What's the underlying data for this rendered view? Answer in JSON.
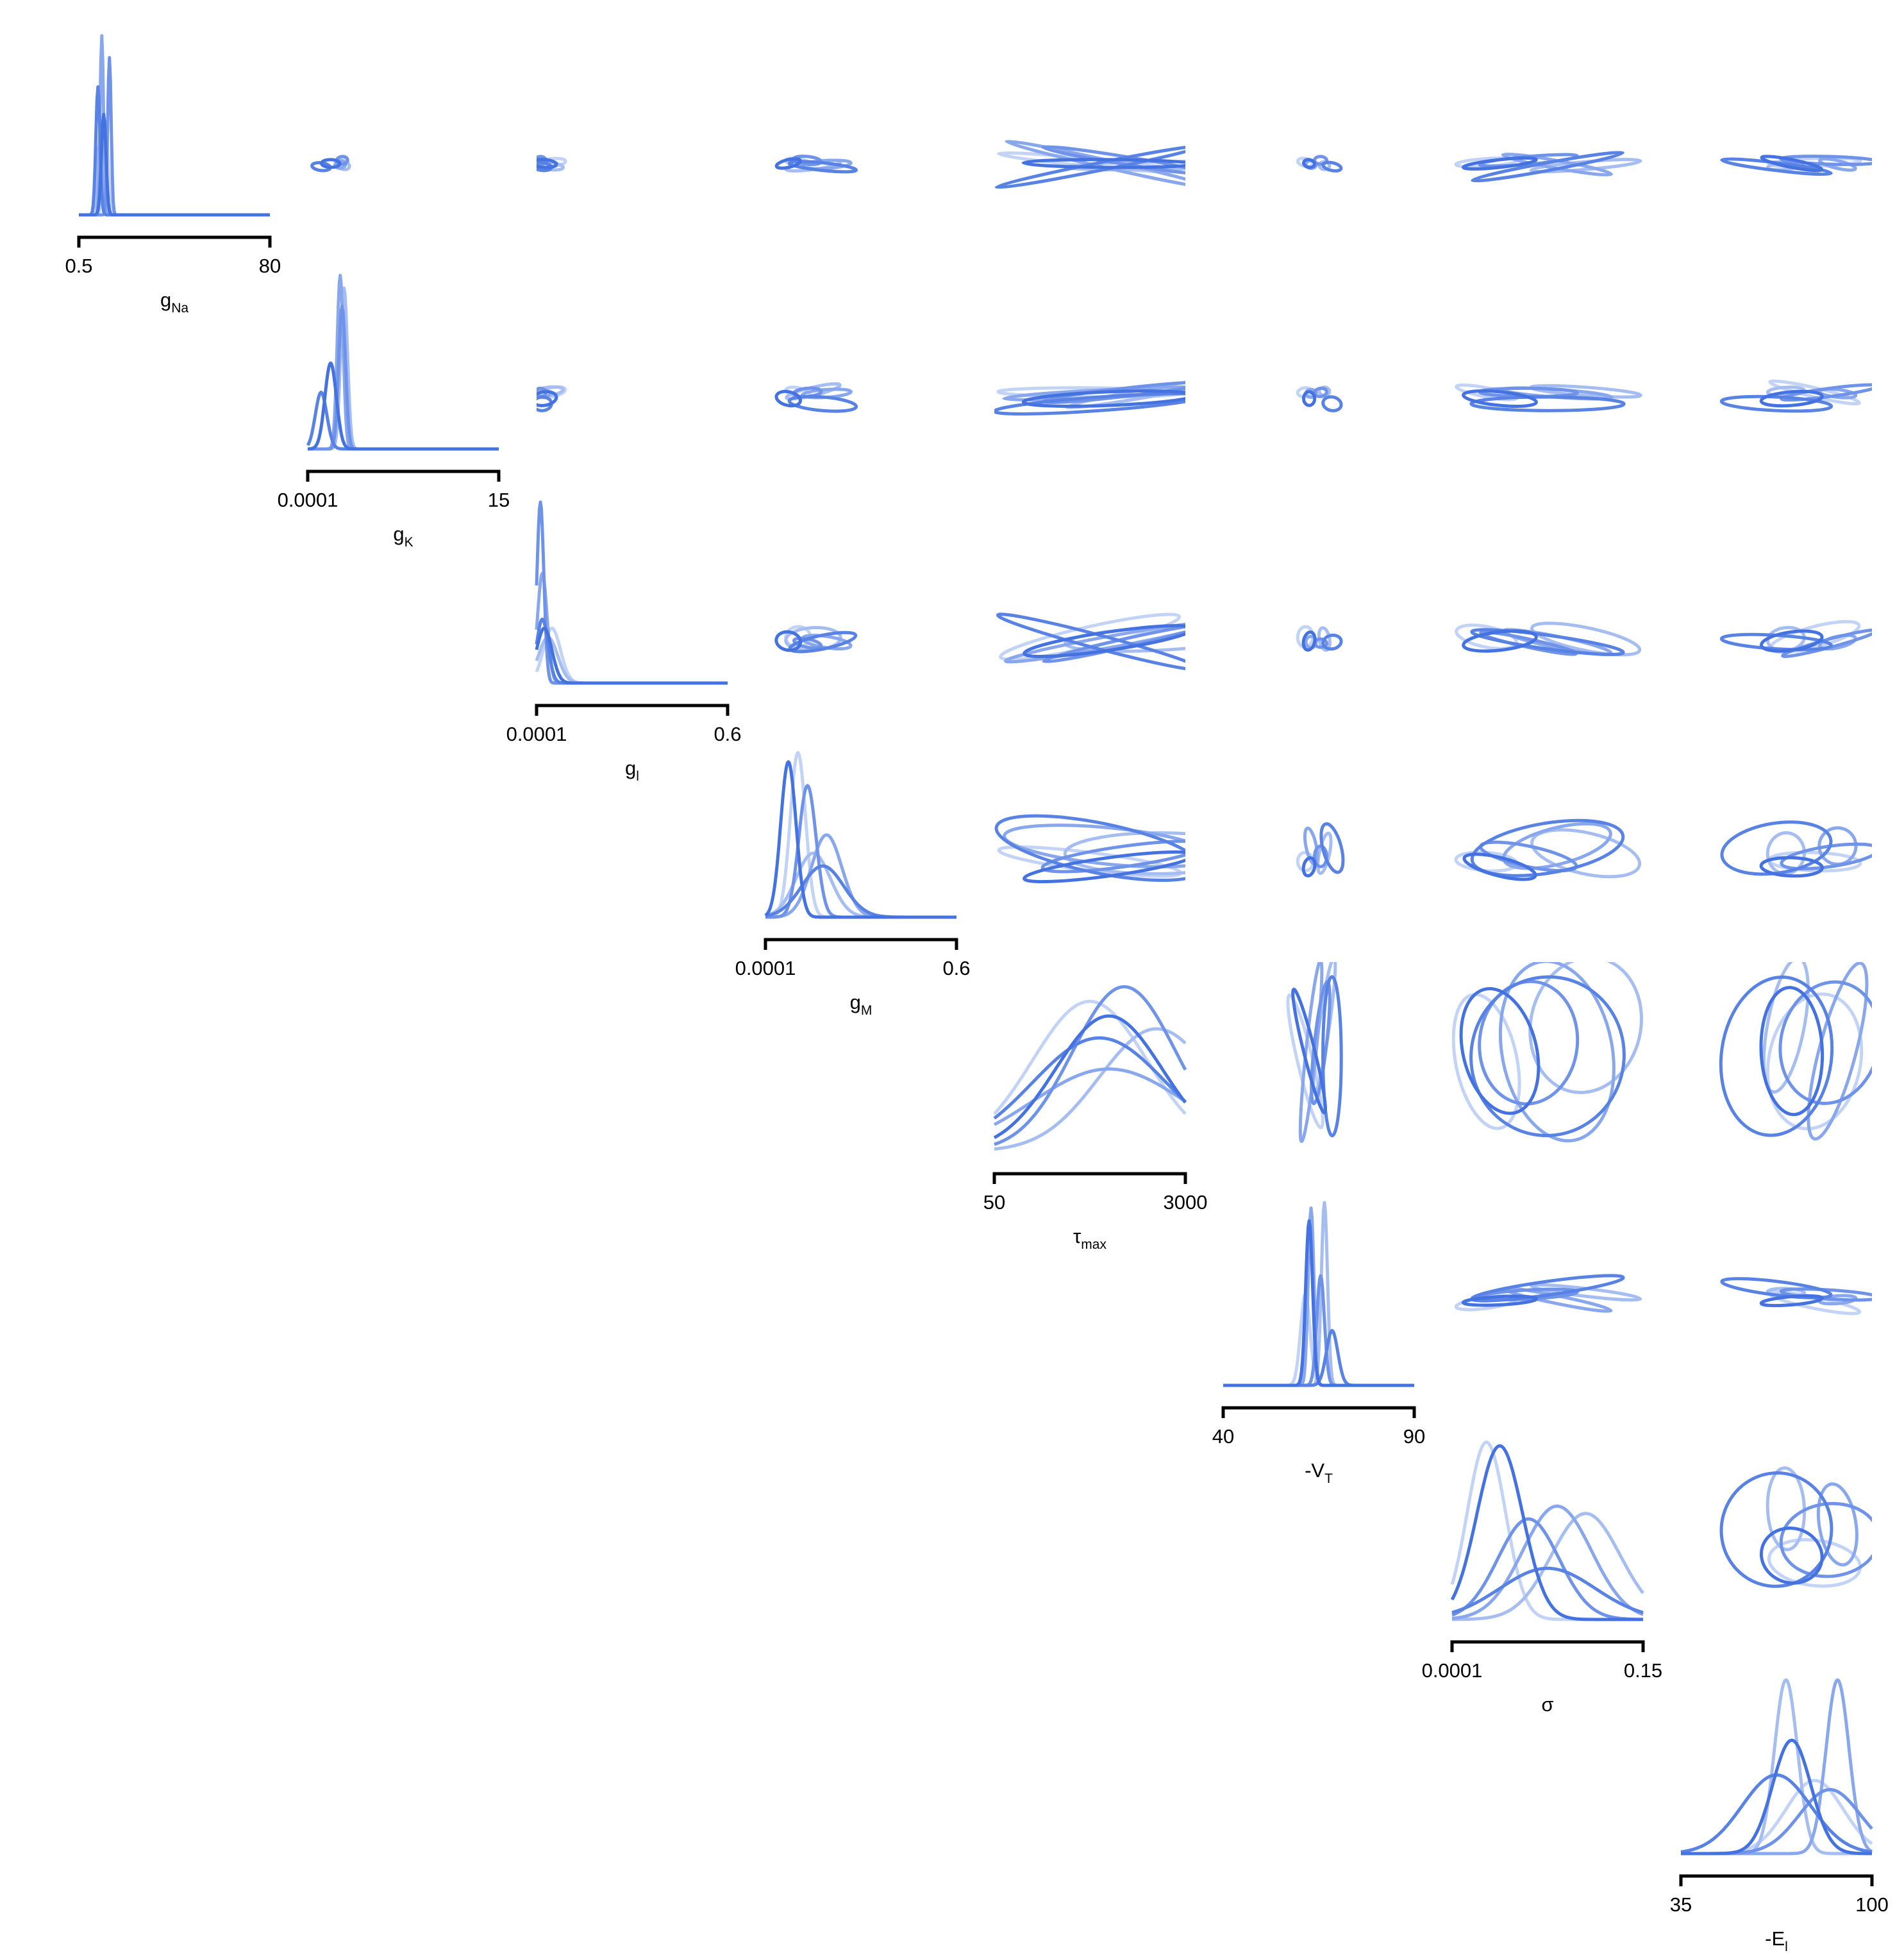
{
  "chart_data": {
    "type": "pairplot",
    "series_colors": [
      "#4472E0",
      "#5882E4",
      "#6F93E8",
      "#89A7EC",
      "#A5BDF0",
      "#C2D3F5"
    ],
    "parameters": [
      {
        "base": "g",
        "sub": "Na",
        "prefix": "",
        "range": [
          0.5,
          80
        ],
        "tick_labels": [
          "0.5",
          "80"
        ]
      },
      {
        "base": "g",
        "sub": "K",
        "prefix": "",
        "range": [
          0.0001,
          15
        ],
        "tick_labels": [
          "0.0001",
          "15"
        ]
      },
      {
        "base": "g",
        "sub": "l",
        "prefix": "",
        "range": [
          0.0001,
          0.6
        ],
        "tick_labels": [
          "0.0001",
          "0.6"
        ]
      },
      {
        "base": "g",
        "sub": "M",
        "prefix": "",
        "range": [
          0.0001,
          0.6
        ],
        "tick_labels": [
          "0.0001",
          "0.6"
        ]
      },
      {
        "base": "τ",
        "sub": "max",
        "prefix": "",
        "range": [
          50,
          3000
        ],
        "tick_labels": [
          "50",
          "3000"
        ]
      },
      {
        "base": "V",
        "sub": "T",
        "prefix": "-",
        "range": [
          40,
          90
        ],
        "tick_labels": [
          "40",
          "90"
        ]
      },
      {
        "base": "σ",
        "sub": "",
        "prefix": "",
        "range": [
          0.0001,
          0.15
        ],
        "tick_labels": [
          "0.0001",
          "0.15"
        ]
      },
      {
        "base": "E",
        "sub": "l",
        "prefix": "-",
        "range": [
          35,
          100
        ],
        "tick_labels": [
          "35",
          "100"
        ]
      }
    ],
    "marginals": [
      {
        "param": 0,
        "series": [
          {
            "peak": 0.13,
            "width": 0.012,
            "height": 0.55
          },
          {
            "peak": 0.1,
            "width": 0.011,
            "height": 0.7
          },
          {
            "peak": 0.16,
            "width": 0.009,
            "height": 0.86
          },
          {
            "peak": 0.12,
            "width": 0.009,
            "height": 0.98
          },
          {
            "peak": 0.11,
            "width": 0.014,
            "height": 0.4
          },
          {
            "peak": 0.14,
            "width": 0.013,
            "height": 0.5
          }
        ]
      },
      {
        "param": 1,
        "series": [
          {
            "peak": 0.12,
            "width": 0.03,
            "height": 0.47
          },
          {
            "peak": 0.07,
            "width": 0.03,
            "height": 0.31
          },
          {
            "peak": 0.18,
            "width": 0.018,
            "height": 0.78
          },
          {
            "peak": 0.17,
            "width": 0.016,
            "height": 0.95
          },
          {
            "peak": 0.19,
            "width": 0.018,
            "height": 0.88
          },
          {
            "peak": 0.18,
            "width": 0.02,
            "height": 0.7
          }
        ]
      },
      {
        "param": 2,
        "series": [
          {
            "peak": 0.04,
            "width": 0.04,
            "height": 0.3
          },
          {
            "peak": 0.03,
            "width": 0.03,
            "height": 0.35
          },
          {
            "peak": 0.02,
            "width": 0.018,
            "height": 0.99
          },
          {
            "peak": 0.03,
            "width": 0.025,
            "height": 0.6
          },
          {
            "peak": 0.06,
            "width": 0.05,
            "height": 0.25
          },
          {
            "peak": 0.08,
            "width": 0.045,
            "height": 0.3
          }
        ]
      },
      {
        "param": 3,
        "series": [
          {
            "peak": 0.12,
            "width": 0.04,
            "height": 0.85
          },
          {
            "peak": 0.3,
            "width": 0.11,
            "height": 0.28
          },
          {
            "peak": 0.22,
            "width": 0.045,
            "height": 0.72
          },
          {
            "peak": 0.32,
            "width": 0.08,
            "height": 0.45
          },
          {
            "peak": 0.25,
            "width": 0.09,
            "height": 0.35
          },
          {
            "peak": 0.17,
            "width": 0.04,
            "height": 0.9
          }
        ]
      },
      {
        "param": 4,
        "series": [
          {
            "peak": 0.6,
            "width": 0.28,
            "height": 0.74
          },
          {
            "peak": 0.55,
            "width": 0.35,
            "height": 0.62
          },
          {
            "peak": 0.68,
            "width": 0.27,
            "height": 0.9
          },
          {
            "peak": 0.6,
            "width": 0.4,
            "height": 0.45
          },
          {
            "peak": 0.85,
            "width": 0.3,
            "height": 0.67
          },
          {
            "peak": 0.5,
            "width": 0.3,
            "height": 0.82
          }
        ]
      },
      {
        "param": 5,
        "series": [
          {
            "peak": 0.45,
            "width": 0.018,
            "height": 0.9
          },
          {
            "peak": 0.57,
            "width": 0.03,
            "height": 0.3
          },
          {
            "peak": 0.51,
            "width": 0.02,
            "height": 0.6
          },
          {
            "peak": 0.46,
            "width": 0.015,
            "height": 0.97
          },
          {
            "peak": 0.53,
            "width": 0.016,
            "height": 1.0
          },
          {
            "peak": 0.43,
            "width": 0.025,
            "height": 0.5
          }
        ]
      },
      {
        "param": 6,
        "series": [
          {
            "peak": 0.25,
            "width": 0.12,
            "height": 0.95
          },
          {
            "peak": 0.5,
            "width": 0.25,
            "height": 0.28
          },
          {
            "peak": 0.4,
            "width": 0.16,
            "height": 0.55
          },
          {
            "peak": 0.55,
            "width": 0.18,
            "height": 0.62
          },
          {
            "peak": 0.7,
            "width": 0.18,
            "height": 0.58
          },
          {
            "peak": 0.18,
            "width": 0.1,
            "height": 0.97
          }
        ]
      },
      {
        "param": 7,
        "series": [
          {
            "peak": 0.58,
            "width": 0.1,
            "height": 0.62
          },
          {
            "peak": 0.5,
            "width": 0.18,
            "height": 0.43
          },
          {
            "peak": 0.78,
            "width": 0.16,
            "height": 0.35
          },
          {
            "peak": 0.82,
            "width": 0.06,
            "height": 0.95
          },
          {
            "peak": 0.55,
            "width": 0.06,
            "height": 0.95
          },
          {
            "peak": 0.7,
            "width": 0.15,
            "height": 0.4
          }
        ]
      }
    ]
  }
}
